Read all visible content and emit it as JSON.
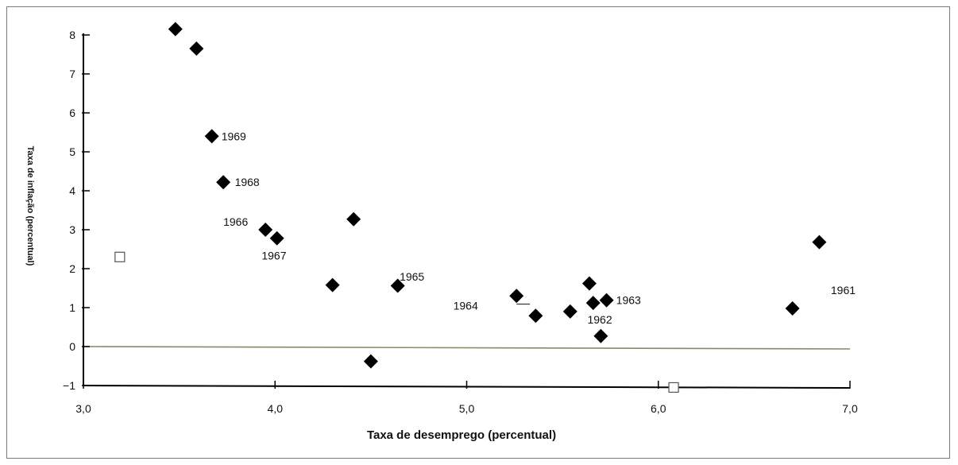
{
  "chart_data": {
    "type": "scatter",
    "xlabel": "Taxa de desemprego (percentual)",
    "ylabel": "Taxa de inflação (percentual)",
    "xlim": [
      3.0,
      7.0
    ],
    "ylim": [
      -1,
      8
    ],
    "xticks": [
      3.0,
      4.0,
      5.0,
      6.0,
      7.0
    ],
    "xtick_labels": [
      "3,0",
      "4,0",
      "5,0",
      "6,0",
      "7,0"
    ],
    "yticks": [
      -1,
      0,
      1,
      2,
      3,
      4,
      5,
      6,
      7,
      8
    ],
    "grid": false,
    "colors": {
      "point": "#000000",
      "axis": "#000000",
      "zero_line": "#8a8a6a"
    },
    "points": [
      {
        "x": 3.48,
        "y": 8.15
      },
      {
        "x": 3.59,
        "y": 7.65
      },
      {
        "x": 3.67,
        "y": 5.4
      },
      {
        "x": 3.73,
        "y": 4.22
      },
      {
        "x": 3.95,
        "y": 3.0
      },
      {
        "x": 4.01,
        "y": 2.78
      },
      {
        "x": 4.3,
        "y": 1.58
      },
      {
        "x": 4.41,
        "y": 3.27
      },
      {
        "x": 4.5,
        "y": -0.38
      },
      {
        "x": 4.64,
        "y": 1.56
      },
      {
        "x": 5.26,
        "y": 1.3
      },
      {
        "x": 5.36,
        "y": 0.79
      },
      {
        "x": 5.54,
        "y": 0.9
      },
      {
        "x": 5.64,
        "y": 1.62
      },
      {
        "x": 5.66,
        "y": 1.12
      },
      {
        "x": 5.7,
        "y": 0.27
      },
      {
        "x": 5.73,
        "y": 1.19
      },
      {
        "x": 6.7,
        "y": 0.98
      },
      {
        "x": 6.84,
        "y": 2.68
      }
    ],
    "hollow_points": [
      {
        "x": 3.19,
        "y": 2.3
      },
      {
        "x": 6.08,
        "y": -1.05
      }
    ],
    "annotations": [
      {
        "text": "1969",
        "x": 3.72,
        "y": 5.4,
        "anchor": "start"
      },
      {
        "text": "1968",
        "x": 3.79,
        "y": 4.22,
        "anchor": "start"
      },
      {
        "text": "1966",
        "x": 3.73,
        "y": 3.2,
        "anchor": "start"
      },
      {
        "text": "1967",
        "x": 3.93,
        "y": 2.34,
        "anchor": "start"
      },
      {
        "text": "1965",
        "x": 4.65,
        "y": 1.8,
        "anchor": "start"
      },
      {
        "text": "1964",
        "x": 4.93,
        "y": 1.05,
        "anchor": "start"
      },
      {
        "text": "1963",
        "x": 5.78,
        "y": 1.19,
        "anchor": "start"
      },
      {
        "text": "1962",
        "x": 5.63,
        "y": 0.69,
        "anchor": "start"
      },
      {
        "text": "1961",
        "x": 6.9,
        "y": 1.45,
        "anchor": "start"
      }
    ]
  }
}
